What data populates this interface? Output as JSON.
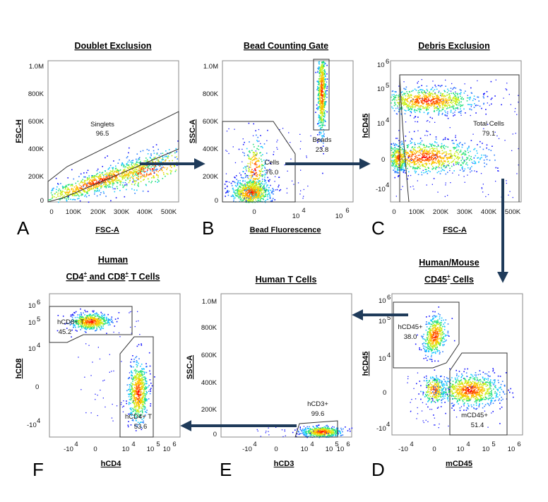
{
  "colors": {
    "arrow": "#1f3b5a",
    "gate": "#333333",
    "density_low": "#0000ff",
    "density_high": "#ff0000"
  },
  "chart_data": [
    {
      "type": "scatter",
      "panel": "A",
      "title": "Doublet Exclusion",
      "xlabel": "FSC-A",
      "ylabel": "FSC-H",
      "xticks": [
        "0",
        "100K",
        "200K",
        "300K",
        "400K",
        "500K"
      ],
      "yticks": [
        "0",
        "200K",
        "400K",
        "600K",
        "800K",
        "1.0M"
      ],
      "gates": [
        {
          "name": "Singlets",
          "value": "96.5"
        }
      ]
    },
    {
      "type": "scatter",
      "panel": "B",
      "title": "Bead Counting Gate",
      "xlabel": "Bead Fluorescence",
      "ylabel": "SSC-A",
      "xticks": [
        "0",
        "4",
        "6"
      ],
      "xexp": [
        "10",
        "10"
      ],
      "yticks": [
        "0",
        "200K",
        "400K",
        "600K",
        "800K",
        "1.0M"
      ],
      "gates": [
        {
          "name": "Cells",
          "value": "76.0"
        },
        {
          "name": "Beads",
          "value": "23.8"
        }
      ]
    },
    {
      "type": "scatter",
      "panel": "C",
      "title": "Debris Exclusion",
      "xlabel": "FSC-A",
      "ylabel": "hCD45",
      "xticks": [
        "0",
        "100K",
        "200K",
        "300K",
        "400K",
        "500K"
      ],
      "yticks": [
        "-10",
        "0",
        "10",
        "10",
        "10"
      ],
      "yexp": [
        "4",
        "4",
        "5",
        "6"
      ],
      "gates": [
        {
          "name": "Total Cells",
          "value": "79.1"
        }
      ]
    },
    {
      "type": "scatter",
      "panel": "D",
      "title": "Human/Mouse",
      "title2": "CD45",
      "title2_sup": "+",
      "title2_rest": " Cells",
      "xlabel": "mCD45",
      "ylabel": "hCD45",
      "xticks": [
        "-10",
        "0",
        "10",
        "10",
        "10"
      ],
      "xexp": [
        "4",
        "4",
        "5",
        "6"
      ],
      "yticks": [
        "-10",
        "0",
        "10",
        "10",
        "10"
      ],
      "yexp": [
        "4",
        "4",
        "5",
        "6"
      ],
      "gates": [
        {
          "name": "hCD45+",
          "value": "38.0"
        },
        {
          "name": "mCD45+",
          "value": "51.4"
        }
      ]
    },
    {
      "type": "scatter",
      "panel": "E",
      "title": "Human T Cells",
      "xlabel": "hCD3",
      "ylabel": "SSC-A",
      "xticks": [
        "-10",
        "0",
        "10",
        "10",
        "10"
      ],
      "xexp": [
        "4",
        "4",
        "5",
        "6"
      ],
      "yticks": [
        "0",
        "200K",
        "400K",
        "600K",
        "800K",
        "1.0M"
      ],
      "gates": [
        {
          "name": "hCD3+",
          "value": "99.6"
        }
      ]
    },
    {
      "type": "scatter",
      "panel": "F",
      "title": "Human",
      "title2a": "CD4",
      "title2_sup1": "+",
      "title2b": " and CD8",
      "title2_sup2": "+",
      "title2c": " T Cells",
      "xlabel": "hCD4",
      "ylabel": "hCD8",
      "xticks": [
        "-10",
        "0",
        "10",
        "10",
        "10"
      ],
      "xexp": [
        "4",
        "4",
        "5",
        "6"
      ],
      "yticks": [
        "-10",
        "0",
        "10",
        "10",
        "10"
      ],
      "yexp": [
        "4",
        "4",
        "5",
        "6"
      ],
      "gates": [
        {
          "name": "hCD8+ T",
          "value": "45.2"
        },
        {
          "name": "hCD4+ T",
          "value": "53.6"
        }
      ]
    }
  ]
}
